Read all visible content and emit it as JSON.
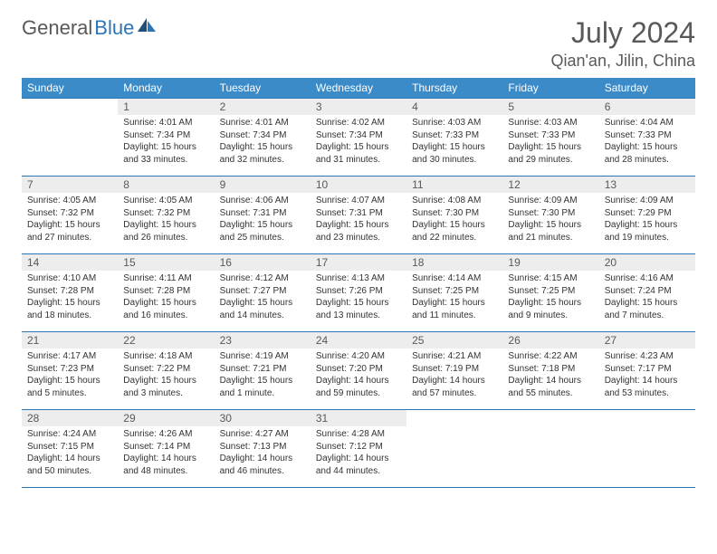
{
  "branding": {
    "logo_part1": "General",
    "logo_part2": "Blue",
    "logo_color_primary": "#595959",
    "logo_color_accent": "#2e75b6"
  },
  "header": {
    "title": "July 2024",
    "location": "Qian'an, Jilin, China"
  },
  "colors": {
    "header_row_bg": "#3b8bc9",
    "header_row_text": "#ffffff",
    "cell_border": "#2e75b6",
    "daynum_bg": "#ededed",
    "text": "#333333",
    "muted_text": "#595959",
    "page_bg": "#ffffff"
  },
  "typography": {
    "title_fontsize": 32,
    "location_fontsize": 18,
    "dayheader_fontsize": 12,
    "daynum_fontsize": 12,
    "body_fontsize": 10
  },
  "calendar": {
    "day_headers": [
      "Sunday",
      "Monday",
      "Tuesday",
      "Wednesday",
      "Thursday",
      "Friday",
      "Saturday"
    ],
    "weeks": [
      [
        null,
        {
          "n": "1",
          "sunrise": "Sunrise: 4:01 AM",
          "sunset": "Sunset: 7:34 PM",
          "day1": "Daylight: 15 hours",
          "day2": "and 33 minutes."
        },
        {
          "n": "2",
          "sunrise": "Sunrise: 4:01 AM",
          "sunset": "Sunset: 7:34 PM",
          "day1": "Daylight: 15 hours",
          "day2": "and 32 minutes."
        },
        {
          "n": "3",
          "sunrise": "Sunrise: 4:02 AM",
          "sunset": "Sunset: 7:34 PM",
          "day1": "Daylight: 15 hours",
          "day2": "and 31 minutes."
        },
        {
          "n": "4",
          "sunrise": "Sunrise: 4:03 AM",
          "sunset": "Sunset: 7:33 PM",
          "day1": "Daylight: 15 hours",
          "day2": "and 30 minutes."
        },
        {
          "n": "5",
          "sunrise": "Sunrise: 4:03 AM",
          "sunset": "Sunset: 7:33 PM",
          "day1": "Daylight: 15 hours",
          "day2": "and 29 minutes."
        },
        {
          "n": "6",
          "sunrise": "Sunrise: 4:04 AM",
          "sunset": "Sunset: 7:33 PM",
          "day1": "Daylight: 15 hours",
          "day2": "and 28 minutes."
        }
      ],
      [
        {
          "n": "7",
          "sunrise": "Sunrise: 4:05 AM",
          "sunset": "Sunset: 7:32 PM",
          "day1": "Daylight: 15 hours",
          "day2": "and 27 minutes."
        },
        {
          "n": "8",
          "sunrise": "Sunrise: 4:05 AM",
          "sunset": "Sunset: 7:32 PM",
          "day1": "Daylight: 15 hours",
          "day2": "and 26 minutes."
        },
        {
          "n": "9",
          "sunrise": "Sunrise: 4:06 AM",
          "sunset": "Sunset: 7:31 PM",
          "day1": "Daylight: 15 hours",
          "day2": "and 25 minutes."
        },
        {
          "n": "10",
          "sunrise": "Sunrise: 4:07 AM",
          "sunset": "Sunset: 7:31 PM",
          "day1": "Daylight: 15 hours",
          "day2": "and 23 minutes."
        },
        {
          "n": "11",
          "sunrise": "Sunrise: 4:08 AM",
          "sunset": "Sunset: 7:30 PM",
          "day1": "Daylight: 15 hours",
          "day2": "and 22 minutes."
        },
        {
          "n": "12",
          "sunrise": "Sunrise: 4:09 AM",
          "sunset": "Sunset: 7:30 PM",
          "day1": "Daylight: 15 hours",
          "day2": "and 21 minutes."
        },
        {
          "n": "13",
          "sunrise": "Sunrise: 4:09 AM",
          "sunset": "Sunset: 7:29 PM",
          "day1": "Daylight: 15 hours",
          "day2": "and 19 minutes."
        }
      ],
      [
        {
          "n": "14",
          "sunrise": "Sunrise: 4:10 AM",
          "sunset": "Sunset: 7:28 PM",
          "day1": "Daylight: 15 hours",
          "day2": "and 18 minutes."
        },
        {
          "n": "15",
          "sunrise": "Sunrise: 4:11 AM",
          "sunset": "Sunset: 7:28 PM",
          "day1": "Daylight: 15 hours",
          "day2": "and 16 minutes."
        },
        {
          "n": "16",
          "sunrise": "Sunrise: 4:12 AM",
          "sunset": "Sunset: 7:27 PM",
          "day1": "Daylight: 15 hours",
          "day2": "and 14 minutes."
        },
        {
          "n": "17",
          "sunrise": "Sunrise: 4:13 AM",
          "sunset": "Sunset: 7:26 PM",
          "day1": "Daylight: 15 hours",
          "day2": "and 13 minutes."
        },
        {
          "n": "18",
          "sunrise": "Sunrise: 4:14 AM",
          "sunset": "Sunset: 7:25 PM",
          "day1": "Daylight: 15 hours",
          "day2": "and 11 minutes."
        },
        {
          "n": "19",
          "sunrise": "Sunrise: 4:15 AM",
          "sunset": "Sunset: 7:25 PM",
          "day1": "Daylight: 15 hours",
          "day2": "and 9 minutes."
        },
        {
          "n": "20",
          "sunrise": "Sunrise: 4:16 AM",
          "sunset": "Sunset: 7:24 PM",
          "day1": "Daylight: 15 hours",
          "day2": "and 7 minutes."
        }
      ],
      [
        {
          "n": "21",
          "sunrise": "Sunrise: 4:17 AM",
          "sunset": "Sunset: 7:23 PM",
          "day1": "Daylight: 15 hours",
          "day2": "and 5 minutes."
        },
        {
          "n": "22",
          "sunrise": "Sunrise: 4:18 AM",
          "sunset": "Sunset: 7:22 PM",
          "day1": "Daylight: 15 hours",
          "day2": "and 3 minutes."
        },
        {
          "n": "23",
          "sunrise": "Sunrise: 4:19 AM",
          "sunset": "Sunset: 7:21 PM",
          "day1": "Daylight: 15 hours",
          "day2": "and 1 minute."
        },
        {
          "n": "24",
          "sunrise": "Sunrise: 4:20 AM",
          "sunset": "Sunset: 7:20 PM",
          "day1": "Daylight: 14 hours",
          "day2": "and 59 minutes."
        },
        {
          "n": "25",
          "sunrise": "Sunrise: 4:21 AM",
          "sunset": "Sunset: 7:19 PM",
          "day1": "Daylight: 14 hours",
          "day2": "and 57 minutes."
        },
        {
          "n": "26",
          "sunrise": "Sunrise: 4:22 AM",
          "sunset": "Sunset: 7:18 PM",
          "day1": "Daylight: 14 hours",
          "day2": "and 55 minutes."
        },
        {
          "n": "27",
          "sunrise": "Sunrise: 4:23 AM",
          "sunset": "Sunset: 7:17 PM",
          "day1": "Daylight: 14 hours",
          "day2": "and 53 minutes."
        }
      ],
      [
        {
          "n": "28",
          "sunrise": "Sunrise: 4:24 AM",
          "sunset": "Sunset: 7:15 PM",
          "day1": "Daylight: 14 hours",
          "day2": "and 50 minutes."
        },
        {
          "n": "29",
          "sunrise": "Sunrise: 4:26 AM",
          "sunset": "Sunset: 7:14 PM",
          "day1": "Daylight: 14 hours",
          "day2": "and 48 minutes."
        },
        {
          "n": "30",
          "sunrise": "Sunrise: 4:27 AM",
          "sunset": "Sunset: 7:13 PM",
          "day1": "Daylight: 14 hours",
          "day2": "and 46 minutes."
        },
        {
          "n": "31",
          "sunrise": "Sunrise: 4:28 AM",
          "sunset": "Sunset: 7:12 PM",
          "day1": "Daylight: 14 hours",
          "day2": "and 44 minutes."
        },
        null,
        null,
        null
      ]
    ]
  }
}
